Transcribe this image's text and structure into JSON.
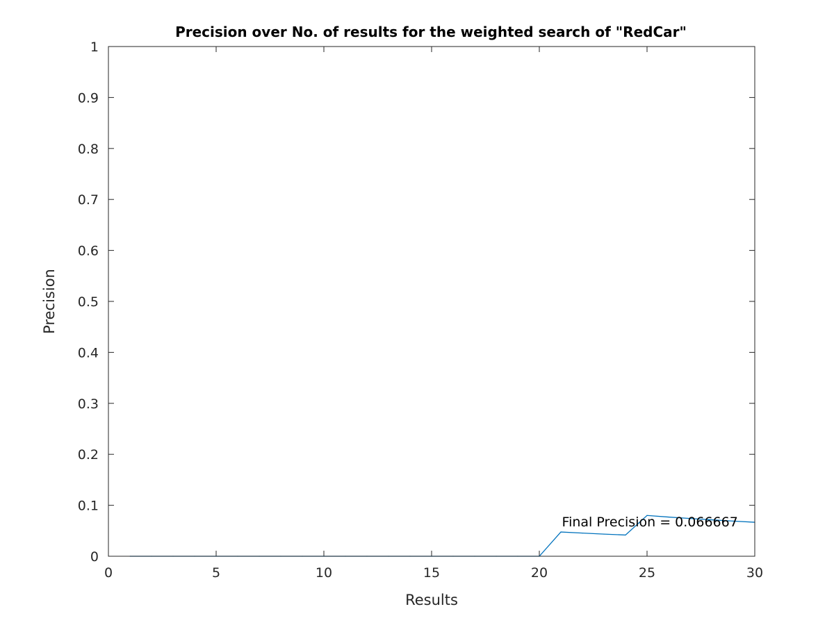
{
  "chart_data": {
    "type": "line",
    "title": "Precision over No. of results for the weighted search of \"RedCar\"",
    "xlabel": "Results",
    "ylabel": "Precision",
    "xlim": [
      0,
      30
    ],
    "ylim": [
      0,
      1
    ],
    "xticks": [
      0,
      5,
      10,
      15,
      20,
      25,
      30
    ],
    "xtick_labels": [
      "0",
      "5",
      "10",
      "15",
      "20",
      "25",
      "30"
    ],
    "yticks": [
      0,
      0.1,
      0.2,
      0.3,
      0.4,
      0.5,
      0.6,
      0.7,
      0.8,
      0.9,
      1
    ],
    "ytick_labels": [
      "0",
      "0.1",
      "0.2",
      "0.3",
      "0.4",
      "0.5",
      "0.6",
      "0.7",
      "0.8",
      "0.9",
      "1"
    ],
    "grid": false,
    "series": [
      {
        "color": "#0072bd",
        "x": [
          1,
          2,
          3,
          4,
          5,
          6,
          7,
          8,
          9,
          10,
          11,
          12,
          13,
          14,
          15,
          16,
          17,
          18,
          19,
          20,
          21,
          22,
          23,
          24,
          25,
          26,
          27,
          28,
          29,
          30
        ],
        "y": [
          0,
          0,
          0,
          0,
          0,
          0,
          0,
          0,
          0,
          0,
          0,
          0,
          0,
          0,
          0,
          0,
          0,
          0,
          0,
          0,
          0.047619,
          0.045455,
          0.043478,
          0.041667,
          0.08,
          0.076923,
          0.074074,
          0.071429,
          0.068966,
          0.066667
        ]
      }
    ],
    "annotation": {
      "text": "Final Precision = 0.066667",
      "x": 21.05,
      "y": 0.066667
    }
  }
}
